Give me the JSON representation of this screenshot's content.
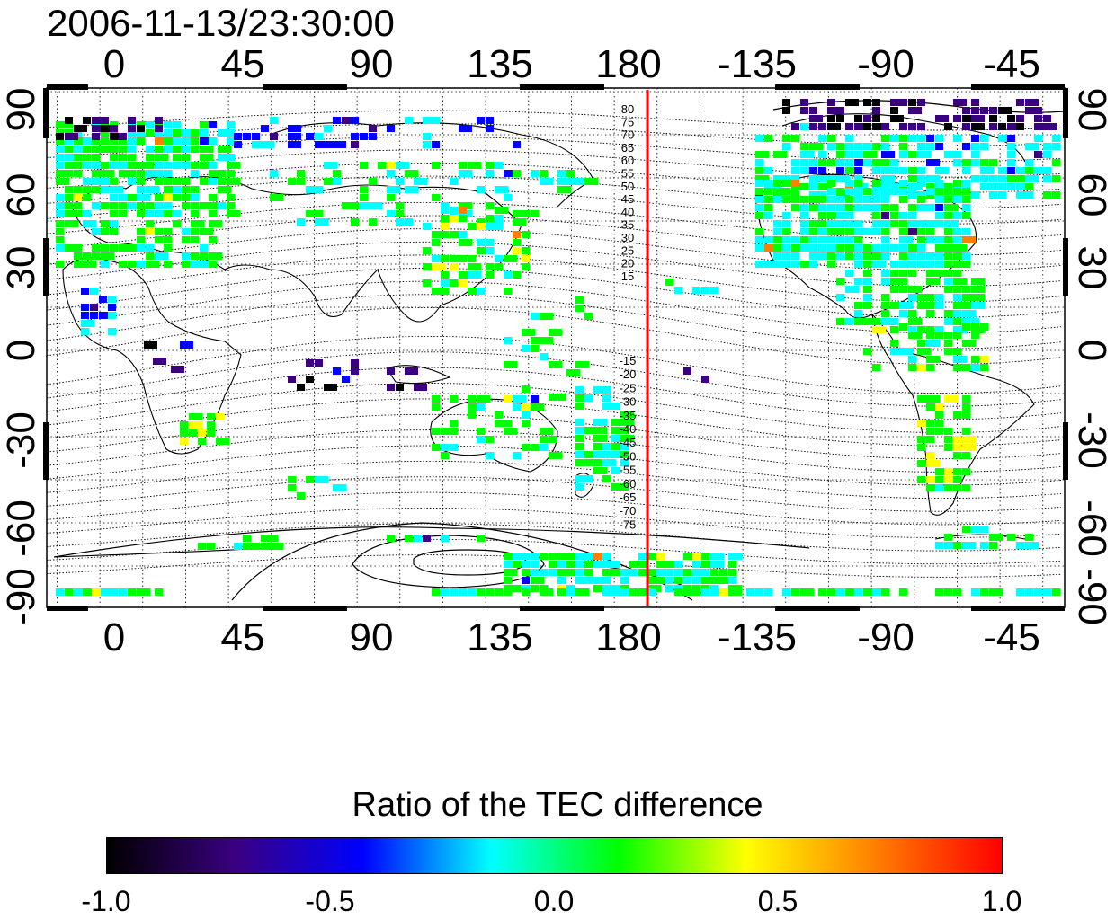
{
  "timestamp": "2006-11-13/23:30:00",
  "map": {
    "top_lon_ticks": [
      "0",
      "45",
      "90",
      "135",
      "180",
      "-135",
      "-90",
      "-45"
    ],
    "bottom_lon_ticks": [
      "0",
      "45",
      "90",
      "135",
      "180",
      "-135",
      "-90",
      "-45"
    ],
    "left_lat_ticks": [
      "90",
      "60",
      "30",
      "0",
      "-30",
      "-60",
      "-90"
    ],
    "right_lat_ticks": [
      "90",
      "60",
      "30",
      "0",
      "-30",
      "-60",
      "-90"
    ],
    "north_contour_labels": [
      "80",
      "75",
      "70",
      "65",
      "60",
      "55",
      "50",
      "45",
      "40",
      "35",
      "30",
      "25",
      "20",
      "15"
    ],
    "south_contour_labels": [
      "-15",
      "-20",
      "-25",
      "-30",
      "-35",
      "-40",
      "-45",
      "-50",
      "-55",
      "-60",
      "-65",
      "-70",
      "-75"
    ],
    "marker_longitude": -170,
    "colors": {
      "marker_line": "#ff0000",
      "contour": "#000000"
    }
  },
  "colorbar": {
    "title": "Ratio of the TEC difference",
    "ticks": [
      "-1.0",
      "-0.5",
      "0.0",
      "0.5",
      "1.0"
    ],
    "stops": [
      "#000000",
      "#3a0080",
      "#0000ff",
      "#00ffff",
      "#00ff00",
      "#ffff00",
      "#ff8000",
      "#ff0000"
    ]
  }
}
